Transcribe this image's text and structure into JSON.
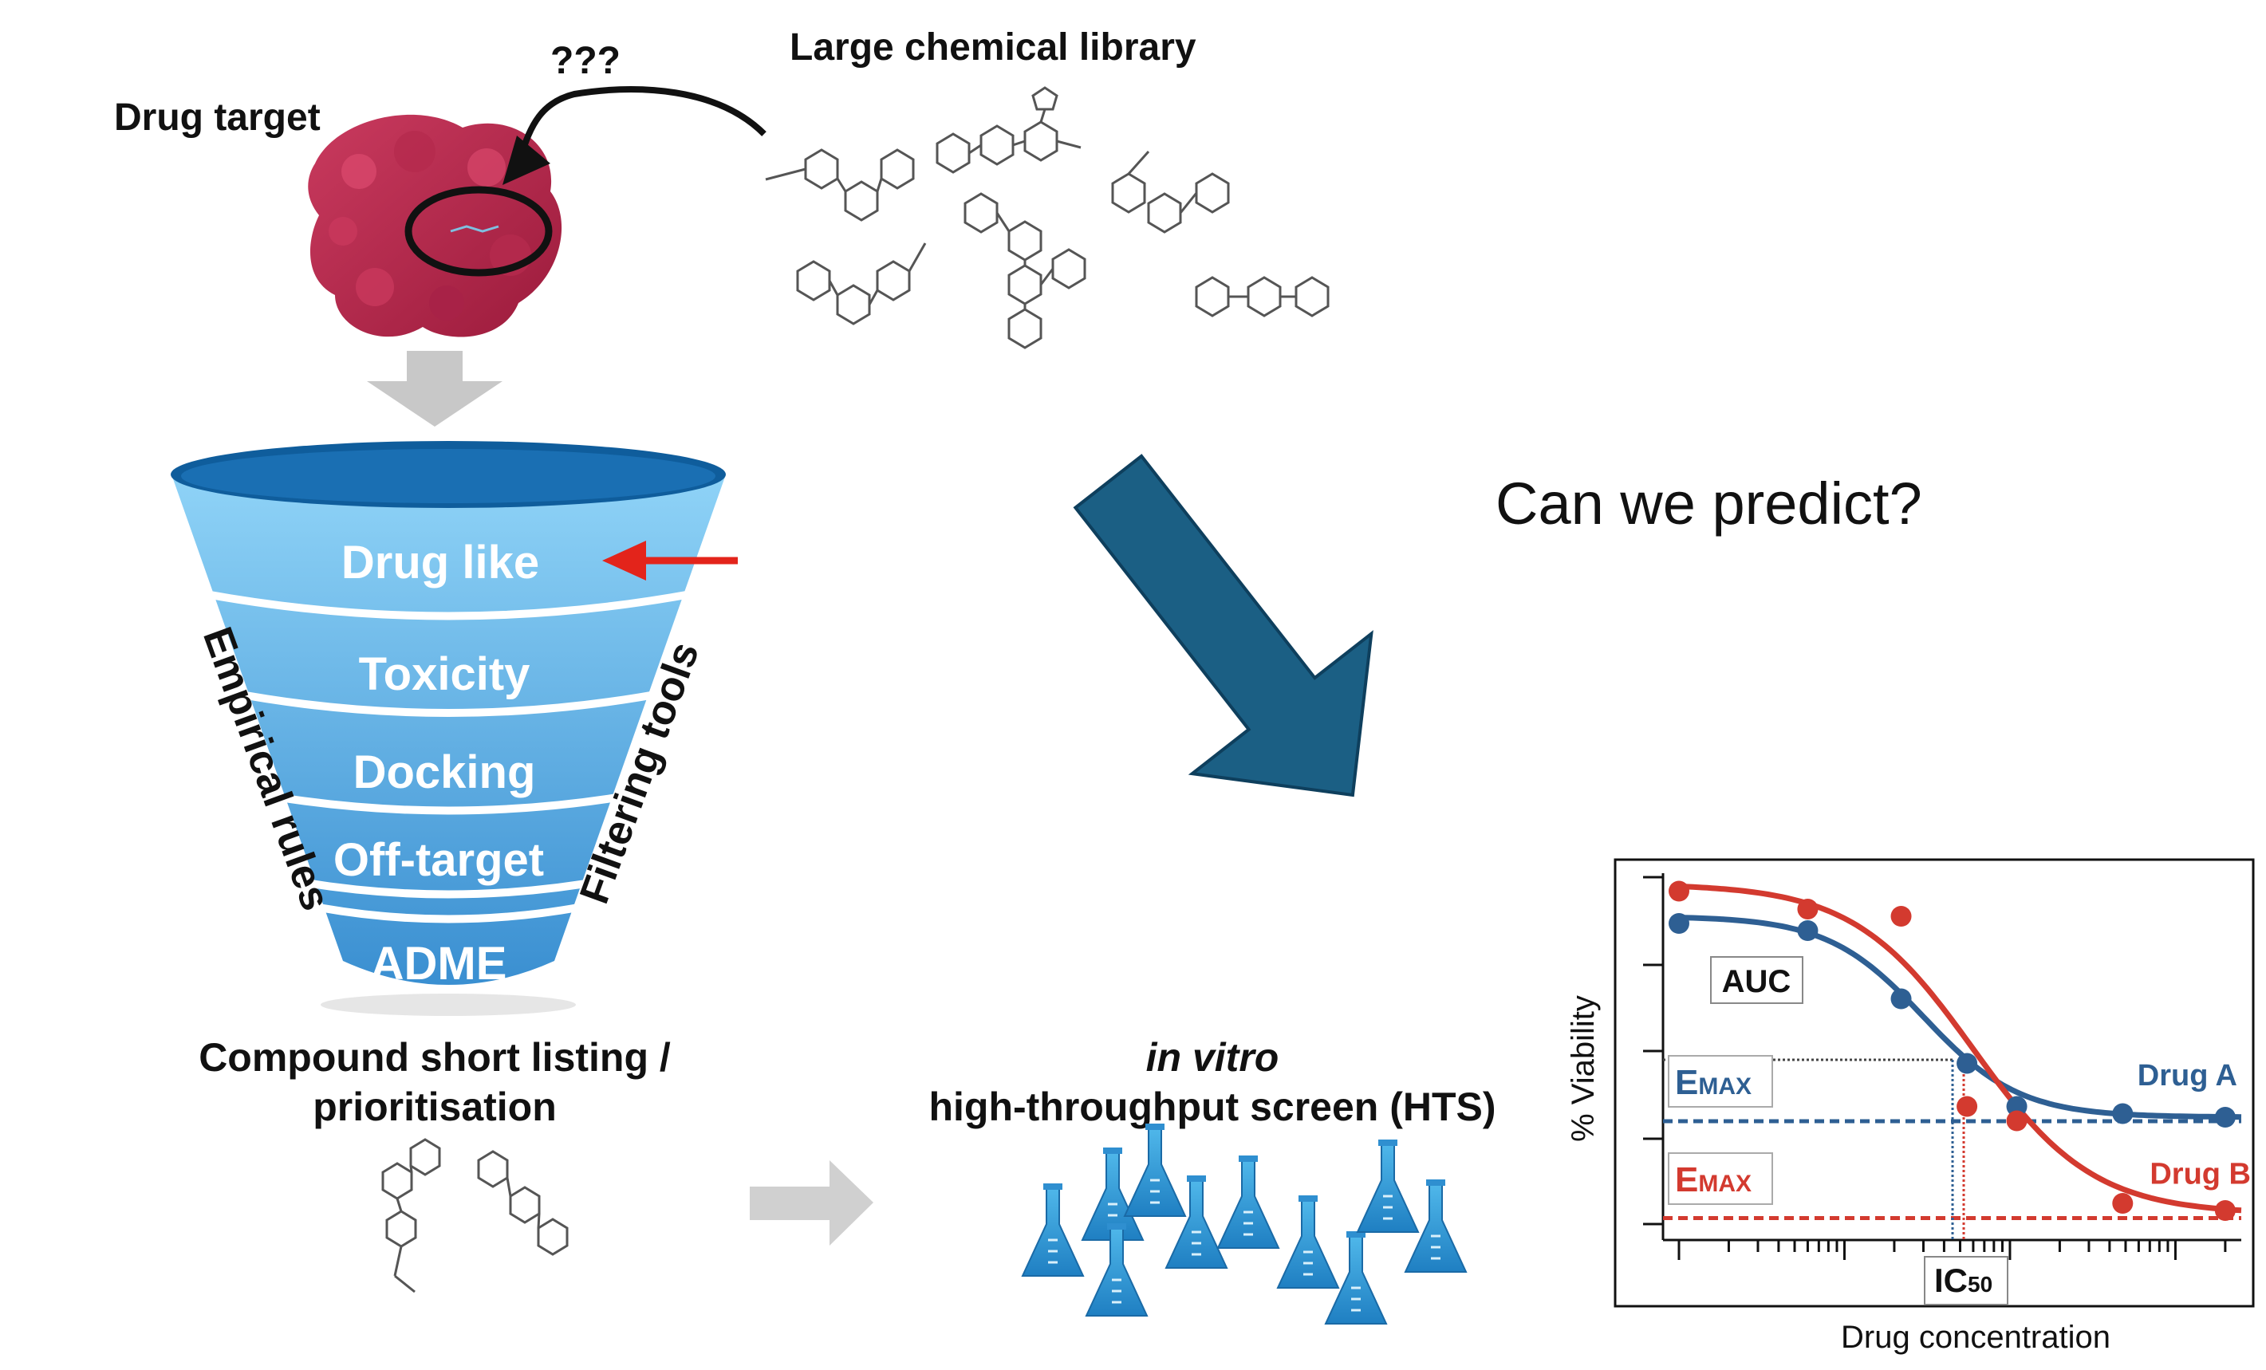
{
  "target": {
    "label": "Drug target",
    "question": "???"
  },
  "library": {
    "label": "Large chemical library"
  },
  "funnel": {
    "levels": [
      "Drug like",
      "Toxicity",
      "Docking",
      "Off-target",
      "ADME"
    ],
    "left_label": "Empirical rules",
    "right_label": "Filtering tools"
  },
  "shortlist": {
    "line1": "Compound short listing /",
    "line2": "prioritisation"
  },
  "hts": {
    "line1": "in vitro",
    "line2": "high-throughput screen (HTS)"
  },
  "predict": {
    "label": "Can we predict?"
  },
  "chart_data": {
    "type": "line",
    "xlabel": "Drug concentration",
    "ylabel": "% Viability",
    "xscale": "log",
    "grid": false,
    "annotations": {
      "auc": "AUC",
      "ic50": "IC50",
      "emax_a": "EMAX",
      "emax_b": "EMAX"
    },
    "colors": {
      "drug_a": "#2e5f93",
      "drug_b": "#d33a2f"
    },
    "series": [
      {
        "name": "Drug A",
        "x": [
          1,
          6,
          22,
          55,
          110,
          480,
          2000
        ],
        "y": [
          0.86,
          0.84,
          0.65,
          0.47,
          0.35,
          0.33,
          0.32
        ]
      },
      {
        "name": "Drug B",
        "x": [
          1,
          6,
          22,
          55,
          110,
          480,
          2000
        ],
        "y": [
          0.95,
          0.9,
          0.88,
          0.35,
          0.31,
          0.08,
          0.06
        ]
      }
    ]
  }
}
